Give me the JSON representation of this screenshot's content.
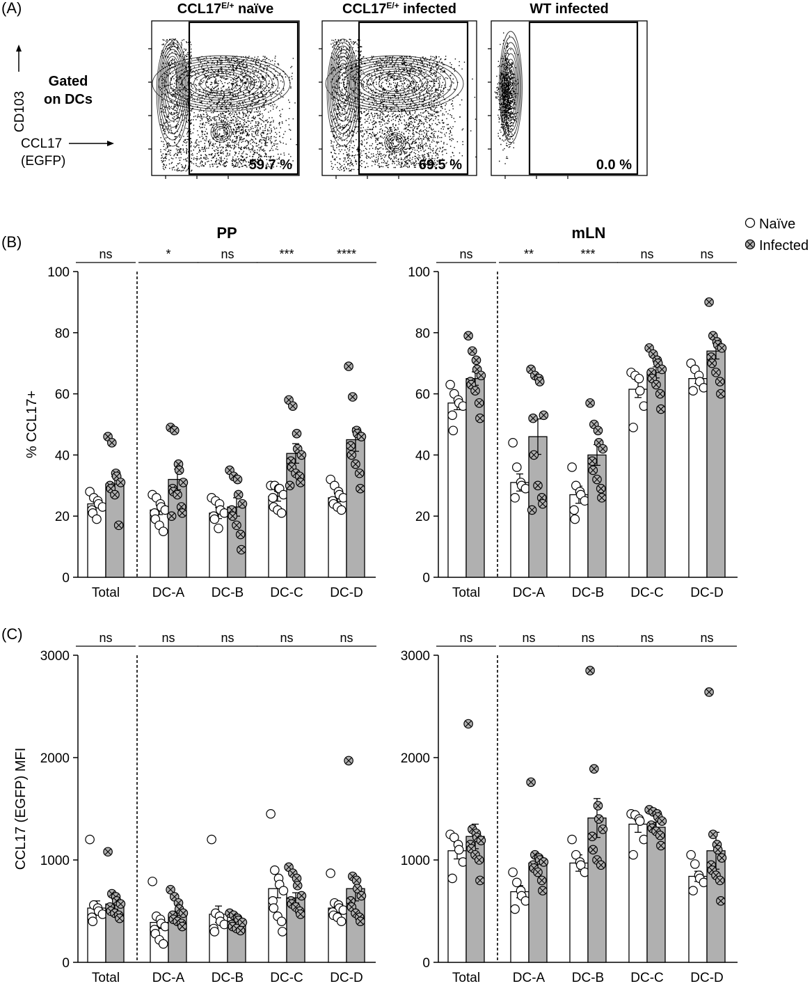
{
  "panels": {
    "a_label": "(A)",
    "b_label": "(B)",
    "c_label": "(C)"
  },
  "flow": {
    "gate_label_line1": "Gated",
    "gate_label_line2": "on DCs",
    "y_marker": "CD103",
    "x_marker_line1": "CCL17",
    "x_marker_line2": "(EGFP)",
    "plots": [
      {
        "title_main": "CCL17",
        "title_sup": "E/+",
        "title_rest": " naïve",
        "percent": "59.7 %"
      },
      {
        "title_main": "CCL17",
        "title_sup": "E/+",
        "title_rest": " infected",
        "percent": "69.5 %"
      },
      {
        "title_main": "WT infected",
        "title_sup": "",
        "title_rest": "",
        "percent": "0.0 %"
      }
    ]
  },
  "legend": {
    "naive": "Naïve",
    "infected": "Infected",
    "naive_color": "#ffffff",
    "infected_color": "#b0b0b0"
  },
  "chart_data": [
    {
      "type": "bar",
      "title": "PP",
      "ylabel": "% CCL17+",
      "ylim": [
        0,
        100
      ],
      "yticks": [
        "0",
        "20",
        "40",
        "60",
        "80",
        "100"
      ],
      "categories": [
        "Total",
        "DC-A",
        "DC-B",
        "DC-C",
        "DC-D"
      ],
      "significance": [
        "ns",
        "*",
        "ns",
        "***",
        "****"
      ],
      "series": [
        {
          "name": "Naïve",
          "values": [
            24,
            22,
            21,
            26.5,
            26
          ],
          "sem": [
            1.2,
            1.5,
            1.8,
            1.6,
            1.3
          ],
          "points": [
            [
              28,
              26,
              25,
              24,
              23,
              22,
              21,
              19
            ],
            [
              27,
              26,
              24,
              23,
              22,
              21,
              19,
              17,
              15
            ],
            [
              26,
              25,
              24,
              22,
              21,
              20,
              19,
              16
            ],
            [
              30,
              30,
              29,
              29,
              27,
              26,
              23,
              22,
              21
            ],
            [
              32,
              30,
              28,
              27,
              26,
              25,
              24,
              23,
              22
            ]
          ]
        },
        {
          "name": "Infected",
          "values": [
            30.5,
            32,
            23,
            40.5,
            45
          ],
          "sem": [
            2.4,
            3.4,
            3.0,
            3.2,
            3.8
          ],
          "points": [
            [
              46,
              44,
              34,
              33,
              31,
              30,
              29,
              27,
              17
            ],
            [
              49,
              48,
              37,
              35,
              31,
              29,
              28,
              27,
              23,
              21,
              20
            ],
            [
              35,
              33,
              32,
              27,
              24,
              22,
              20,
              17,
              14,
              9
            ],
            [
              58,
              56,
              47,
              42,
              40,
              38,
              36,
              34,
              33,
              31,
              30
            ],
            [
              69,
              59,
              48,
              47,
              46,
              43,
              40,
              37,
              34,
              29
            ]
          ]
        }
      ]
    },
    {
      "type": "bar",
      "title": "mLN",
      "ylabel": "",
      "ylim": [
        0,
        100
      ],
      "yticks": [
        "0",
        "20",
        "40",
        "60",
        "80",
        "100"
      ],
      "categories": [
        "Total",
        "DC-A",
        "DC-B",
        "DC-C",
        "DC-D"
      ],
      "significance": [
        "ns",
        "**",
        "***",
        "ns",
        "ns"
      ],
      "series": [
        {
          "name": "Naïve",
          "values": [
            57,
            31,
            27,
            61.5,
            65
          ],
          "sem": [
            2.2,
            2.8,
            2.8,
            2.7,
            1.6
          ],
          "points": [
            [
              63,
              60,
              58,
              57,
              56,
              53,
              48
            ],
            [
              44,
              36,
              31,
              30,
              29,
              26
            ],
            [
              36,
              30,
              28,
              27,
              25,
              22,
              19
            ],
            [
              67,
              66,
              65,
              61,
              56,
              49
            ],
            [
              70,
              68,
              66,
              64,
              62,
              61
            ]
          ]
        },
        {
          "name": "Infected",
          "values": [
            65,
            46,
            40,
            67,
            74
          ],
          "sem": [
            2.2,
            5.8,
            3.4,
            1.8,
            2.6
          ],
          "points": [
            [
              79,
              74,
              71,
              68,
              66,
              64,
              63,
              61,
              57,
              52
            ],
            [
              68,
              66,
              65,
              64,
              53,
              52,
              40,
              30,
              26,
              24,
              22
            ],
            [
              57,
              50,
              48,
              44,
              42,
              38,
              35,
              32,
              29,
              26
            ],
            [
              75,
              73,
              71,
              70,
              68,
              67,
              65,
              63,
              60,
              55
            ],
            [
              90,
              79,
              77,
              76,
              75,
              72,
              70,
              67,
              64,
              60
            ]
          ]
        }
      ]
    },
    {
      "type": "bar",
      "title": "",
      "ylabel": "CCL17 (EGFP) MFI",
      "ylim": [
        0,
        3000
      ],
      "yticks": [
        "0",
        "1000",
        "2000",
        "3000"
      ],
      "categories": [
        "Total",
        "DC-A",
        "DC-B",
        "DC-C",
        "DC-D"
      ],
      "significance": [
        "ns",
        "ns",
        "ns",
        "ns",
        "ns"
      ],
      "series": [
        {
          "name": "Naïve",
          "values": [
            530,
            390,
            470,
            720,
            530
          ],
          "sem": [
            70,
            60,
            80,
            90,
            50
          ],
          "points": [
            [
              1200,
              560,
              530,
              500,
              470,
              440,
              400
            ],
            [
              790,
              450,
              420,
              380,
              350,
              320,
              280,
              220,
              180
            ],
            [
              1200,
              480,
              450,
              400,
              370,
              330,
              300
            ],
            [
              1450,
              900,
              820,
              760,
              700,
              600,
              530,
              450,
              400,
              300
            ],
            [
              870,
              580,
              560,
              530,
              510,
              490,
              460,
              440,
              400
            ]
          ]
        },
        {
          "name": "Infected",
          "values": [
            570,
            460,
            400,
            630,
            720
          ],
          "sem": [
            50,
            40,
            30,
            50,
            120
          ],
          "points": [
            [
              1080,
              670,
              640,
              600,
              570,
              540,
              500,
              480,
              460,
              430
            ],
            [
              710,
              640,
              580,
              520,
              480,
              460,
              420,
              400,
              380,
              350
            ],
            [
              480,
              460,
              430,
              410,
              390,
              370,
              350,
              330,
              310
            ],
            [
              930,
              870,
              820,
              750,
              650,
              600,
              570,
              540,
              500,
              470
            ],
            [
              1970,
              840,
              800,
              720,
              650,
              600,
              540,
              480,
              440,
              400
            ]
          ]
        }
      ]
    },
    {
      "type": "bar",
      "title": "",
      "ylabel": "",
      "ylim": [
        0,
        3000
      ],
      "yticks": [
        "0",
        "1000",
        "2000",
        "3000"
      ],
      "categories": [
        "Total",
        "DC-A",
        "DC-B",
        "DC-C",
        "DC-D"
      ],
      "significance": [
        "ns",
        "ns",
        "ns",
        "ns",
        "ns"
      ],
      "series": [
        {
          "name": "Naïve",
          "values": [
            1090,
            690,
            970,
            1350,
            840
          ],
          "sem": [
            80,
            60,
            80,
            80,
            50
          ],
          "points": [
            [
              1250,
              1220,
              1150,
              1100,
              980,
              820
            ],
            [
              880,
              780,
              700,
              650,
              600,
              520
            ],
            [
              1200,
              1050,
              980,
              950,
              880
            ],
            [
              1450,
              1440,
              1400,
              1380,
              1200,
              1050
            ],
            [
              1050,
              960,
              850,
              820,
              780,
              700
            ]
          ]
        },
        {
          "name": "Infected",
          "values": [
            1230,
            970,
            1410,
            1320,
            1090
          ],
          "sem": [
            120,
            80,
            190,
            50,
            180
          ],
          "points": [
            [
              2330,
              1300,
              1260,
              1220,
              1190,
              1150,
              1110,
              1050,
              1000,
              800
            ],
            [
              1760,
              1050,
              1020,
              1000,
              980,
              950,
              920,
              880,
              800,
              700
            ],
            [
              2850,
              1890,
              1530,
              1400,
              1300,
              1230,
              1100,
              1000,
              950
            ],
            [
              1490,
              1470,
              1450,
              1420,
              1380,
              1340,
              1310,
              1280,
              1240,
              1140
            ],
            [
              2640,
              1250,
              1150,
              1100,
              1020,
              950,
              900,
              850,
              800,
              600
            ]
          ]
        }
      ]
    }
  ]
}
